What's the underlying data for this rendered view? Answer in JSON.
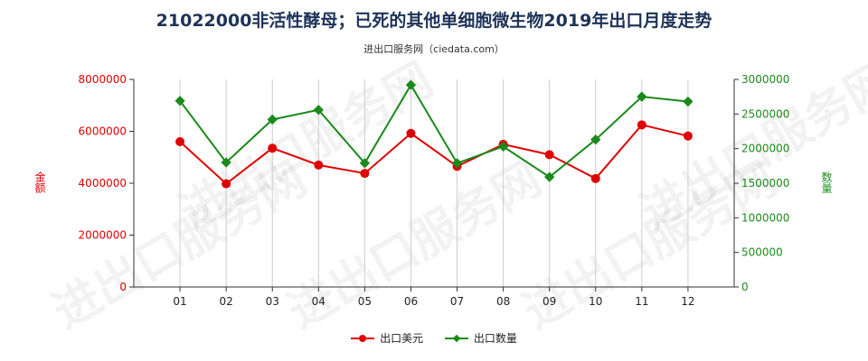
{
  "title": "21022000非活性酵母；已死的其他单细胞微生物2019年出口月度走势",
  "subtitle": "进出口服务网（ciedata.com）",
  "watermark": "进出口服务网",
  "colors": {
    "amount": "#e00000",
    "quantity": "#1a8a1a",
    "axis": "#333333",
    "grid": "#cccccc"
  },
  "chart_data": {
    "type": "line",
    "categories": [
      "01",
      "02",
      "03",
      "04",
      "05",
      "06",
      "07",
      "08",
      "09",
      "10",
      "11",
      "12"
    ],
    "ylabel_left": "金额",
    "ylabel_right": "数量",
    "ylim_left": [
      0,
      8000000
    ],
    "ylim_right": [
      0,
      3000000
    ],
    "yticks_left": [
      "0",
      "2000000",
      "4000000",
      "6000000",
      "8000000"
    ],
    "yticks_right": [
      "0",
      "500000",
      "1000000",
      "1500000",
      "2000000",
      "2500000",
      "3000000"
    ],
    "series": [
      {
        "name": "出口美元",
        "axis": "left",
        "marker": "circle",
        "values": [
          5600000,
          3980000,
          5350000,
          4700000,
          4380000,
          5920000,
          4650000,
          5500000,
          5100000,
          4180000,
          6250000,
          5820000
        ]
      },
      {
        "name": "出口数量",
        "axis": "right",
        "marker": "diamond",
        "values": [
          2690000,
          1800000,
          2420000,
          2560000,
          1790000,
          2920000,
          1790000,
          2030000,
          1590000,
          2130000,
          2750000,
          2680000
        ]
      }
    ],
    "grid": "vertical"
  }
}
